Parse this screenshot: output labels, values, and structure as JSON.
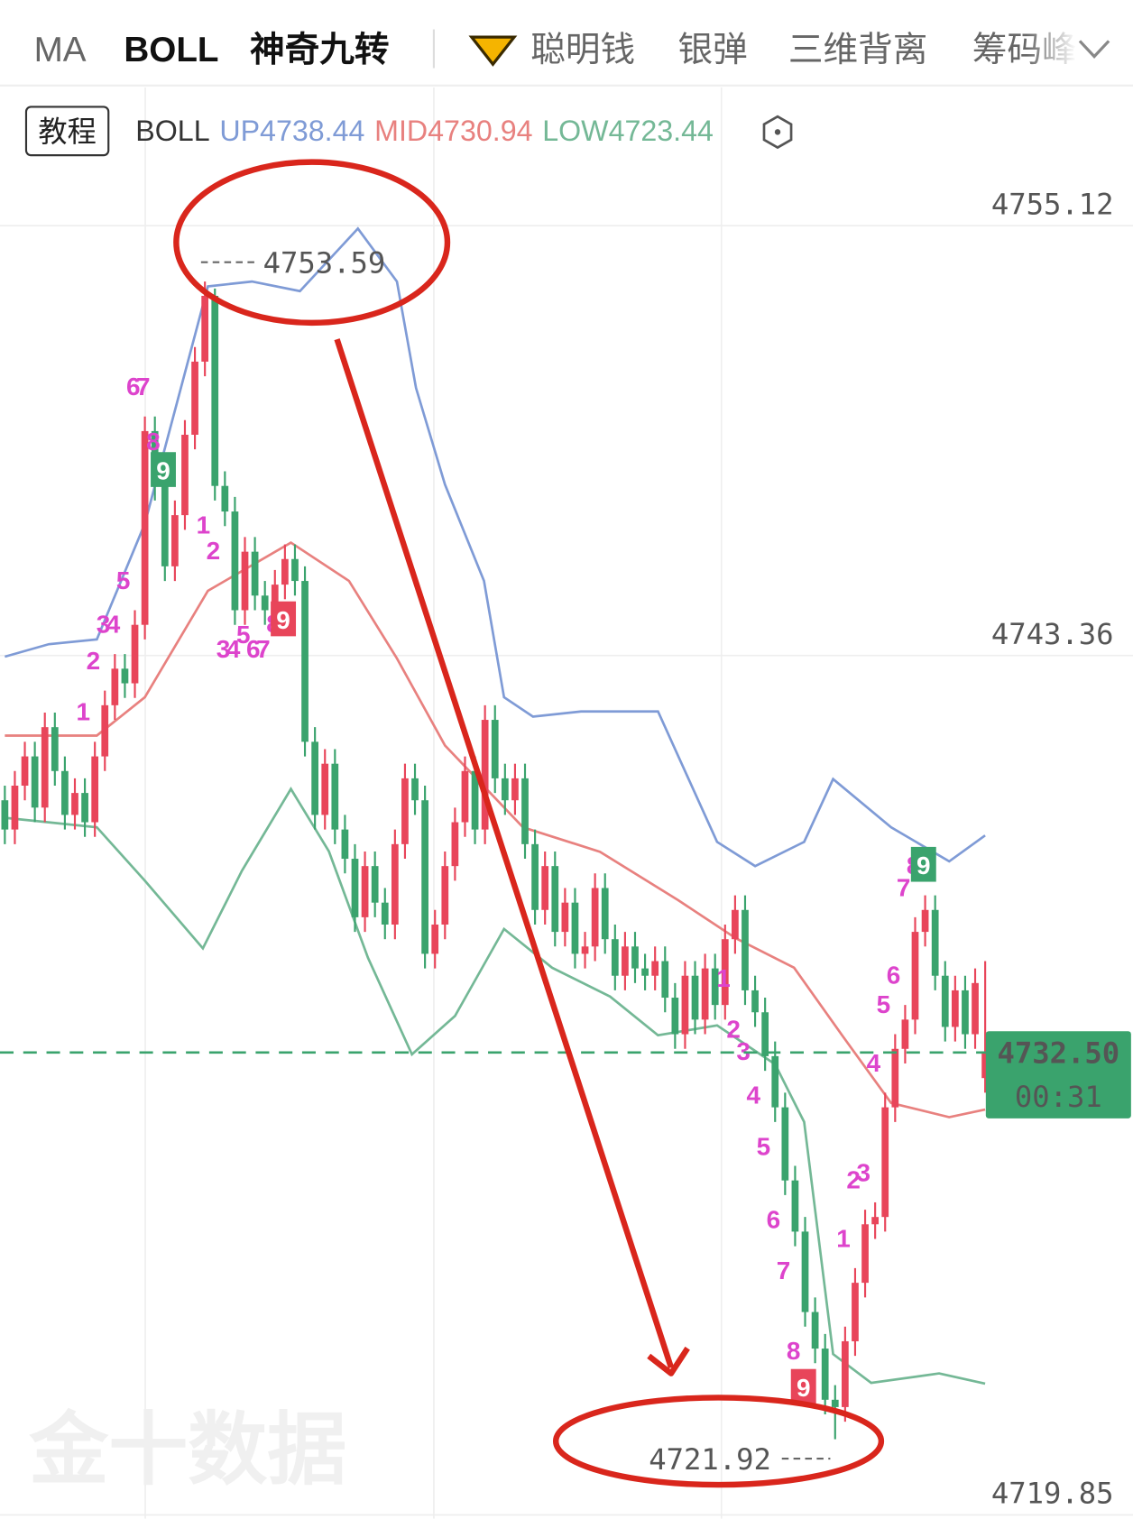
{
  "toolbar": {
    "tabs": [
      "MA",
      "BOLL",
      "神奇九转",
      "聪明钱",
      "银弹",
      "三维背离",
      "筹码峰"
    ]
  },
  "legend": {
    "button": "教程",
    "indicator": "BOLL"
  },
  "watermark": "金十数据",
  "chart_data": {
    "type": "candlestick",
    "up_color": "#e8455a",
    "down_color": "#3aa36d",
    "ohlc": {
      "open": [
        4739.4,
        4738.6,
        4739.8,
        4740.6,
        4739.2,
        4741.4,
        4740.2,
        4739.0,
        4739.6,
        4738.8,
        4740.6,
        4742.0,
        4743.0,
        4742.6,
        4744.2,
        4749.5,
        4748.0,
        4745.8,
        4747.2,
        4749.4,
        4751.4,
        4753.2,
        4748.0,
        4747.3,
        4744.6,
        4746.2,
        4745.0,
        4744.6,
        4745.3,
        4746.0,
        4745.4,
        4741.0,
        4739.0,
        4740.4,
        4738.6,
        4737.8,
        4736.2,
        4737.6,
        4736.6,
        4736.0,
        4738.2,
        4740.0,
        4739.4,
        4735.2,
        4736.0,
        4737.6,
        4738.8,
        4740.2,
        4738.6,
        4741.6,
        4740.0,
        4739.4,
        4740.0,
        4738.2,
        4736.4,
        4737.6,
        4735.8,
        4736.6,
        4735.2,
        4735.4,
        4737.0,
        4735.6,
        4734.6,
        4735.4,
        4734.8,
        4734.6,
        4735.0,
        4734.0,
        4733.0,
        4734.6,
        4733.4,
        4734.8,
        4733.8,
        4735.6,
        4736.4,
        4734.2,
        4733.6,
        4732.4,
        4731.0,
        4729.0,
        4727.6,
        4725.4,
        4724.4,
        4723.0,
        4722.8,
        4724.6,
        4726.2,
        4727.8,
        4728.0,
        4731.0,
        4732.6,
        4733.4,
        4735.8,
        4736.4,
        4734.6,
        4733.2,
        4734.2,
        4733.0,
        4731.8
      ],
      "high": [
        4739.8,
        4740.2,
        4741.0,
        4741.0,
        4741.8,
        4741.8,
        4740.6,
        4740.0,
        4740.0,
        4741.0,
        4742.4,
        4743.4,
        4743.4,
        4744.6,
        4749.9,
        4749.9,
        4748.4,
        4747.6,
        4749.8,
        4751.8,
        4753.59,
        4753.4,
        4748.4,
        4747.7,
        4746.6,
        4746.6,
        4745.4,
        4745.7,
        4746.4,
        4746.4,
        4745.8,
        4741.4,
        4740.8,
        4740.8,
        4739.0,
        4738.2,
        4738.0,
        4738.0,
        4737.0,
        4738.6,
        4740.4,
        4740.4,
        4739.8,
        4736.4,
        4738.0,
        4739.2,
        4740.6,
        4740.6,
        4742.0,
        4742.0,
        4740.4,
        4740.4,
        4740.4,
        4738.6,
        4738.0,
        4738.0,
        4737.0,
        4737.0,
        4735.8,
        4737.4,
        4737.4,
        4736.0,
        4735.8,
        4735.8,
        4735.2,
        4735.4,
        4735.4,
        4734.4,
        4735.0,
        4735.0,
        4735.2,
        4735.2,
        4736.0,
        4736.8,
        4736.8,
        4734.6,
        4734.0,
        4732.8,
        4731.4,
        4729.4,
        4728.0,
        4725.8,
        4724.8,
        4723.4,
        4725.0,
        4726.6,
        4728.2,
        4728.4,
        4731.4,
        4733.0,
        4733.8,
        4736.2,
        4736.8,
        4736.8,
        4735.0,
        4734.6,
        4734.6,
        4734.8,
        4735.0
      ],
      "low": [
        4738.2,
        4738.2,
        4739.4,
        4738.8,
        4738.8,
        4739.8,
        4738.6,
        4738.6,
        4738.4,
        4738.4,
        4740.2,
        4741.6,
        4742.2,
        4742.2,
        4743.8,
        4747.6,
        4745.4,
        4745.4,
        4746.8,
        4749.0,
        4751.0,
        4747.6,
        4746.9,
        4744.2,
        4744.2,
        4744.6,
        4744.2,
        4744.2,
        4744.9,
        4745.0,
        4740.6,
        4738.6,
        4738.6,
        4738.2,
        4737.4,
        4735.8,
        4735.8,
        4736.2,
        4735.6,
        4735.6,
        4737.8,
        4739.0,
        4734.8,
        4734.8,
        4735.6,
        4737.2,
        4738.4,
        4738.2,
        4738.2,
        4739.6,
        4739.0,
        4739.0,
        4737.8,
        4736.0,
        4736.0,
        4735.4,
        4735.4,
        4734.8,
        4734.8,
        4735.0,
        4735.2,
        4734.2,
        4734.2,
        4734.4,
        4734.2,
        4734.2,
        4733.6,
        4732.6,
        4732.6,
        4733.0,
        4733.0,
        4733.4,
        4733.4,
        4735.2,
        4733.8,
        4733.2,
        4732.0,
        4730.6,
        4728.6,
        4727.2,
        4725.0,
        4724.0,
        4722.6,
        4721.92,
        4722.4,
        4724.2,
        4725.8,
        4727.4,
        4727.6,
        4730.6,
        4732.2,
        4733.0,
        4735.4,
        4734.2,
        4732.8,
        4732.8,
        4732.6,
        4732.6,
        4731.4
      ],
      "close": [
        4738.6,
        4739.8,
        4740.6,
        4739.2,
        4741.4,
        4740.2,
        4739.0,
        4739.6,
        4738.8,
        4740.6,
        4742.0,
        4743.0,
        4742.6,
        4744.2,
        4749.5,
        4748.0,
        4745.8,
        4747.2,
        4749.4,
        4751.4,
        4753.2,
        4748.0,
        4747.3,
        4744.6,
        4746.2,
        4745.0,
        4744.6,
        4745.3,
        4746.0,
        4745.4,
        4741.0,
        4739.0,
        4740.4,
        4738.6,
        4737.8,
        4736.2,
        4737.6,
        4736.6,
        4736.0,
        4738.2,
        4740.0,
        4739.4,
        4735.2,
        4736.0,
        4737.6,
        4738.8,
        4740.2,
        4738.6,
        4741.6,
        4740.0,
        4739.4,
        4740.0,
        4738.2,
        4736.4,
        4737.6,
        4735.8,
        4736.6,
        4735.2,
        4735.4,
        4737.0,
        4735.6,
        4734.6,
        4735.4,
        4734.8,
        4734.6,
        4735.0,
        4734.0,
        4733.0,
        4734.6,
        4733.4,
        4734.8,
        4733.8,
        4735.6,
        4736.4,
        4734.2,
        4733.6,
        4732.4,
        4731.0,
        4729.0,
        4727.6,
        4725.4,
        4724.4,
        4723.0,
        4722.8,
        4724.6,
        4726.2,
        4727.8,
        4728.0,
        4731.0,
        4732.6,
        4733.4,
        4735.8,
        4736.4,
        4734.6,
        4733.2,
        4734.2,
        4733.0,
        4734.4,
        4732.5
      ]
    },
    "series": [
      {
        "name": "UP",
        "color": "#7f9bd6",
        "x": [
          0,
          4.4,
          9.2,
          14,
          20.3,
          24.7,
          29.5,
          35.3,
          39.2,
          41.1,
          44,
          47.9,
          49.9,
          52.8,
          57.6,
          65.3,
          71.2,
          75,
          79.9,
          82.8,
          88.6,
          94.4,
          98
        ],
        "values": [
          4743.33,
          4743.67,
          4743.8,
          4746.97,
          4753.46,
          4753.59,
          4753.33,
          4755.04,
          4753.59,
          4750.68,
          4748.04,
          4745.4,
          4742.22,
          4741.69,
          4741.83,
          4741.83,
          4738.26,
          4737.6,
          4738.26,
          4739.98,
          4738.66,
          4737.73,
          4738.44
        ]
      },
      {
        "name": "MID",
        "color": "#e8817f",
        "x": [
          0,
          9.2,
          14,
          20.3,
          28.6,
          34.4,
          39.2,
          44,
          51.8,
          59.5,
          67.3,
          73.1,
          78.9,
          83.7,
          88.6,
          94.4,
          98
        ],
        "values": [
          4741.17,
          4741.17,
          4742.22,
          4745.13,
          4746.45,
          4745.4,
          4743.28,
          4740.9,
          4738.66,
          4737.99,
          4736.67,
          4735.62,
          4734.82,
          4732.97,
          4731.12,
          4730.73,
          4730.94
        ]
      },
      {
        "name": "LOW",
        "color": "#74b896",
        "x": [
          0,
          9.2,
          14,
          19.8,
          23.7,
          28.6,
          32.4,
          36.3,
          40.7,
          45,
          49.9,
          54.7,
          60.5,
          65.3,
          71.2,
          77,
          79.9,
          82.8,
          86.6,
          93.4,
          98
        ],
        "values": [
          4738.92,
          4738.66,
          4737.2,
          4735.35,
          4737.47,
          4739.71,
          4738.0,
          4735.09,
          4732.45,
          4733.5,
          4735.88,
          4734.82,
          4734.03,
          4732.97,
          4733.24,
          4732.18,
          4730.6,
          4724.25,
          4723.46,
          4723.72,
          4723.44
        ]
      }
    ],
    "ylim": [
      4719.8,
      4758.9
    ],
    "yticks": [
      4755.12,
      4743.36,
      4719.85
    ],
    "grid": true,
    "current_price": {
      "value": 4732.5,
      "label": "4732.50",
      "countdown": "00:31"
    },
    "td_color": "#dd44cc",
    "td_labels": [
      {
        "index": 9,
        "label": "1",
        "position": "above"
      },
      {
        "index": 10,
        "label": "2",
        "position": "above"
      },
      {
        "index": 11,
        "label": "3",
        "position": "above"
      },
      {
        "index": 12,
        "label": "4",
        "position": "above"
      },
      {
        "index": 13,
        "label": "5",
        "position": "above"
      },
      {
        "index": 14,
        "label": "6",
        "position": "above"
      },
      {
        "index": 15,
        "label": "7",
        "position": "above"
      },
      {
        "index": 16,
        "label": "8",
        "position": "above"
      },
      {
        "index": 17,
        "label": "9",
        "position": "above",
        "color": "#3aa36d"
      },
      {
        "index": 21,
        "label": "1",
        "position": "below"
      },
      {
        "index": 22,
        "label": "2",
        "position": "below"
      },
      {
        "index": 23,
        "label": "3",
        "position": "below"
      },
      {
        "index": 24,
        "label": "4",
        "position": "below"
      },
      {
        "index": 25,
        "label": "5",
        "position": "below"
      },
      {
        "index": 26,
        "label": "6",
        "position": "below"
      },
      {
        "index": 27,
        "label": "7",
        "position": "below"
      },
      {
        "index": 28,
        "label": "8",
        "position": "below"
      },
      {
        "index": 29,
        "label": "9",
        "position": "below",
        "color": "#e8455a"
      },
      {
        "index": 73,
        "label": "1",
        "position": "below"
      },
      {
        "index": 74,
        "label": "2",
        "position": "below"
      },
      {
        "index": 75,
        "label": "3",
        "position": "below"
      },
      {
        "index": 76,
        "label": "4",
        "position": "below"
      },
      {
        "index": 77,
        "label": "5",
        "position": "below"
      },
      {
        "index": 78,
        "label": "6",
        "position": "below"
      },
      {
        "index": 79,
        "label": "7",
        "position": "below"
      },
      {
        "index": 80,
        "label": "8",
        "position": "below"
      },
      {
        "index": 81,
        "label": "9",
        "position": "below",
        "color": "#e8455a"
      },
      {
        "index": 85,
        "label": "1",
        "position": "above"
      },
      {
        "index": 86,
        "label": "2",
        "position": "above"
      },
      {
        "index": 87,
        "label": "3",
        "position": "above"
      },
      {
        "index": 88,
        "label": "4",
        "position": "above"
      },
      {
        "index": 89,
        "label": "5",
        "position": "above"
      },
      {
        "index": 90,
        "label": "6",
        "position": "above"
      },
      {
        "index": 91,
        "label": "7",
        "position": "above"
      },
      {
        "index": 92,
        "label": "8",
        "position": "above"
      },
      {
        "index": 93,
        "label": "9",
        "position": "above",
        "color": "#3aa36d"
      }
    ]
  }
}
